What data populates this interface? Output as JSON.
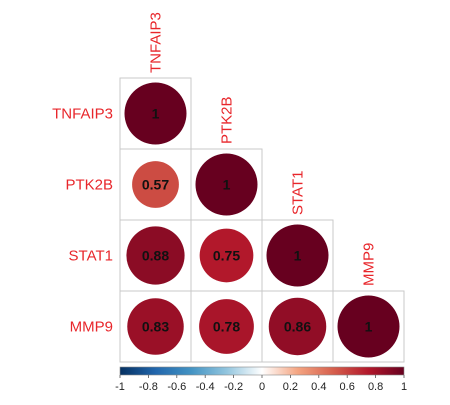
{
  "chart_data": {
    "type": "heatmap",
    "variables": [
      "TNFAIP3",
      "PTK2B",
      "STAT1",
      "MMP9"
    ],
    "matrix": [
      [
        1,
        null,
        null,
        null
      ],
      [
        0.57,
        1,
        null,
        null
      ],
      [
        0.88,
        0.75,
        1,
        null
      ],
      [
        0.83,
        0.78,
        0.86,
        1
      ]
    ],
    "value_labels": [
      [
        "1",
        null,
        null,
        null
      ],
      [
        "0.57",
        "1",
        null,
        null
      ],
      [
        "0.88",
        "0.75",
        "1",
        null
      ],
      [
        "0.83",
        "0.78",
        "0.86",
        "1"
      ]
    ],
    "triangle": "lower",
    "colorbar": {
      "range": [
        -1,
        1
      ],
      "ticks": [
        "-1",
        "-0.8",
        "-0.6",
        "-0.4",
        "-0.2",
        "0",
        "0.2",
        "0.4",
        "0.6",
        "0.8",
        "1"
      ],
      "low_color": "#053061",
      "mid_color": "#ffffff",
      "high_color": "#67001f",
      "position": "bottom"
    },
    "label_color": "#e8262b"
  }
}
